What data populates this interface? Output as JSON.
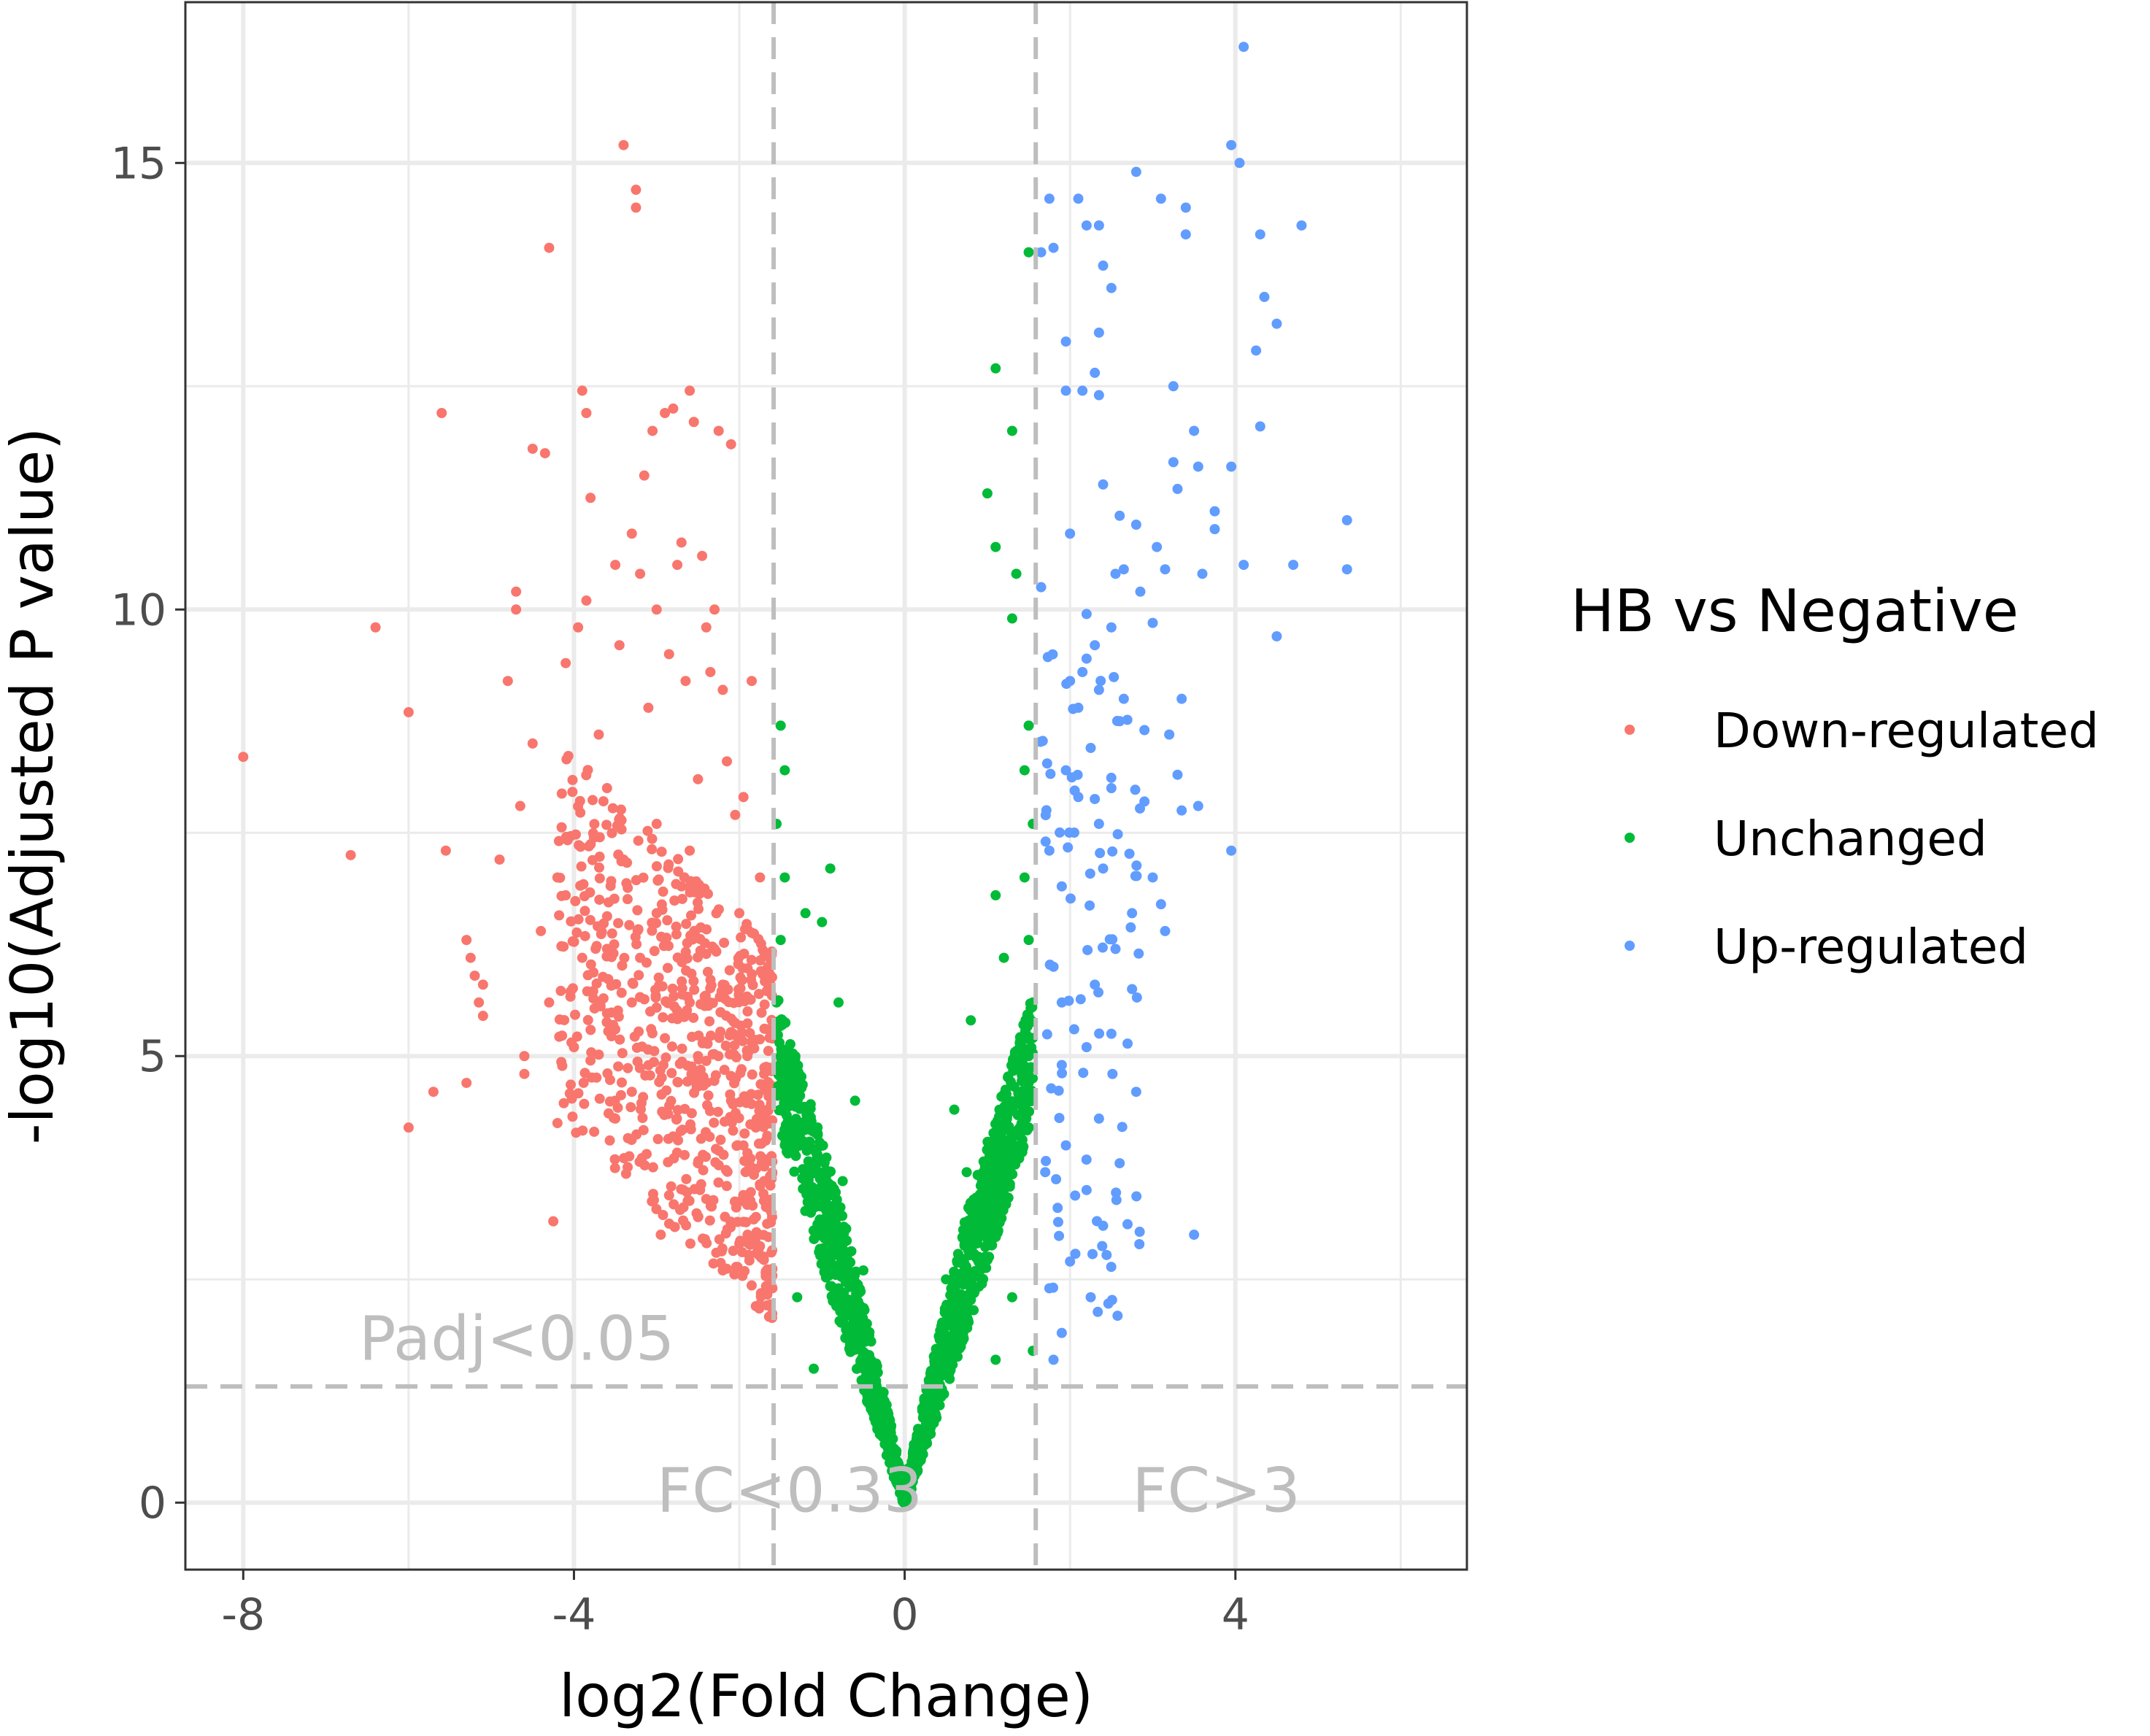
{
  "chart_data": {
    "type": "scatter",
    "title": "",
    "xlabel": "log2(Fold Change)",
    "ylabel": "-log10(Adjusted P value)",
    "xlim": [
      -8.7,
      6.8
    ],
    "ylim": [
      -0.75,
      16.8
    ],
    "x_ticks": [
      -8,
      -4,
      0,
      4
    ],
    "y_ticks": [
      0,
      5,
      10,
      15
    ],
    "grid": true,
    "legend": {
      "title": "HB vs Negative",
      "position": "right",
      "entries": [
        {
          "label": "Down-regulated",
          "color": "#f8766d"
        },
        {
          "label": "Unchanged",
          "color": "#00ba38"
        },
        {
          "label": "Up-regulated",
          "color": "#619cff"
        }
      ]
    },
    "thresholds": {
      "x": [
        -1.585,
        1.585
      ],
      "y": 1.301,
      "line_color": "#bebebe",
      "line_style": "dashed"
    },
    "annotations": [
      {
        "text": "Padj<0.05",
        "x": -6.6,
        "y": 1.6
      },
      {
        "text": "FC<0.33",
        "x": -3.0,
        "y": -0.1
      },
      {
        "text": "FC>3",
        "x": 2.75,
        "y": -0.1
      }
    ],
    "series": [
      {
        "name": "Down-regulated",
        "color": "#f8766d",
        "points": [
          [
            -8.0,
            8.35
          ],
          [
            -6.7,
            7.25
          ],
          [
            -6.4,
            9.8
          ],
          [
            -6.0,
            8.85
          ],
          [
            -6.0,
            4.2
          ],
          [
            -5.7,
            4.6
          ],
          [
            -5.6,
            12.2
          ],
          [
            -5.55,
            7.3
          ],
          [
            -5.3,
            4.7
          ],
          [
            -5.3,
            6.3
          ],
          [
            -5.25,
            6.1
          ],
          [
            -5.2,
            5.9
          ],
          [
            -5.15,
            5.6
          ],
          [
            -5.1,
            5.8
          ],
          [
            -5.1,
            5.45
          ],
          [
            -4.9,
            7.2
          ],
          [
            -4.8,
            9.2
          ],
          [
            -4.7,
            10.2
          ],
          [
            -4.7,
            10.0
          ],
          [
            -4.65,
            7.8
          ],
          [
            -4.6,
            4.8
          ],
          [
            -4.6,
            5.0
          ],
          [
            -4.5,
            8.5
          ],
          [
            -4.5,
            11.8
          ],
          [
            -4.4,
            6.4
          ],
          [
            -4.35,
            11.75
          ],
          [
            -4.3,
            14.05
          ],
          [
            -4.3,
            5.6
          ],
          [
            -4.25,
            3.15
          ],
          [
            -4.2,
            4.25
          ],
          [
            -4.2,
            7.0
          ],
          [
            -4.1,
            9.4
          ],
          [
            -4.1,
            6.8
          ],
          [
            -4.0,
            5.1
          ],
          [
            -3.95,
            9.8
          ],
          [
            -3.9,
            12.45
          ],
          [
            -3.85,
            10.1
          ],
          [
            -3.85,
            12.2
          ],
          [
            -3.8,
            11.25
          ],
          [
            -3.8,
            4.95
          ],
          [
            -3.75,
            7.45
          ],
          [
            -3.7,
            8.6
          ],
          [
            -3.6,
            6.2
          ],
          [
            -3.5,
            10.5
          ],
          [
            -3.5,
            4.3
          ],
          [
            -3.45,
            9.6
          ],
          [
            -3.4,
            15.2
          ],
          [
            -3.4,
            7.2
          ],
          [
            -3.3,
            10.85
          ],
          [
            -3.3,
            5.6
          ],
          [
            -3.25,
            14.5
          ],
          [
            -3.25,
            14.7
          ],
          [
            -3.2,
            10.4
          ],
          [
            -3.15,
            11.5
          ],
          [
            -3.1,
            8.9
          ],
          [
            -3.05,
            12.0
          ],
          [
            -3.0,
            6.6
          ],
          [
            -3.0,
            10.0
          ],
          [
            -2.95,
            3.0
          ],
          [
            -2.9,
            12.2
          ],
          [
            -2.85,
            9.5
          ],
          [
            -2.8,
            12.25
          ],
          [
            -2.75,
            10.5
          ],
          [
            -2.7,
            10.75
          ],
          [
            -2.65,
            9.2
          ],
          [
            -2.6,
            12.45
          ],
          [
            -2.55,
            12.1
          ],
          [
            -2.5,
            8.1
          ],
          [
            -2.5,
            3.8
          ],
          [
            -2.45,
            10.6
          ],
          [
            -2.4,
            9.8
          ],
          [
            -2.35,
            9.3
          ],
          [
            -2.3,
            10.0
          ],
          [
            -2.25,
            12.0
          ],
          [
            -2.2,
            9.1
          ],
          [
            -2.2,
            2.6
          ],
          [
            -2.15,
            8.3
          ],
          [
            -2.1,
            11.85
          ],
          [
            -2.05,
            7.7
          ],
          [
            -2.0,
            6.6
          ],
          [
            -1.95,
            7.9
          ],
          [
            -1.9,
            5.5
          ],
          [
            -1.85,
            9.2
          ],
          [
            -1.8,
            4.2
          ],
          [
            -1.75,
            7.0
          ],
          [
            -1.7,
            3.6
          ],
          [
            -1.65,
            5.3
          ],
          [
            -1.6,
            2.4
          ],
          [
            -3.6,
            8.0
          ],
          [
            -3.0,
            7.6
          ],
          [
            -2.7,
            6.9
          ],
          [
            -2.9,
            5.2
          ],
          [
            -2.6,
            5.6
          ],
          [
            -2.3,
            6.2
          ],
          [
            -2.1,
            4.5
          ],
          [
            -1.9,
            3.0
          ],
          [
            -1.7,
            4.8
          ],
          [
            -3.3,
            4.6
          ],
          [
            -2.8,
            4.1
          ],
          [
            -2.4,
            3.4
          ],
          [
            -2.0,
            2.9
          ],
          [
            -1.8,
            2.2
          ],
          [
            -3.9,
            6.1
          ],
          [
            -3.2,
            6.1
          ],
          [
            -2.5,
            5.0
          ],
          [
            -1.95,
            4.0
          ],
          [
            -1.65,
            3.3
          ],
          [
            -2.2,
            5.8
          ],
          [
            -2.6,
            7.3
          ],
          [
            -3.5,
            5.3
          ]
        ]
      },
      {
        "name": "Unchanged",
        "color": "#00ba38",
        "points": [
          [
            0.0,
            0.0
          ],
          [
            -0.1,
            0.3
          ],
          [
            0.1,
            0.3
          ],
          [
            -0.2,
            0.6
          ],
          [
            0.2,
            0.6
          ],
          [
            -0.3,
            0.9
          ],
          [
            0.3,
            0.9
          ],
          [
            -0.4,
            1.2
          ],
          [
            0.4,
            1.2
          ],
          [
            -0.5,
            1.5
          ],
          [
            0.5,
            1.5
          ],
          [
            -0.6,
            1.8
          ],
          [
            0.6,
            1.8
          ],
          [
            -0.7,
            2.1
          ],
          [
            0.7,
            2.1
          ],
          [
            -0.8,
            2.4
          ],
          [
            0.8,
            2.4
          ],
          [
            -0.9,
            2.7
          ],
          [
            0.9,
            2.7
          ],
          [
            -1.0,
            3.0
          ],
          [
            1.0,
            3.0
          ],
          [
            -1.1,
            3.3
          ],
          [
            1.1,
            3.3
          ],
          [
            -1.2,
            3.7
          ],
          [
            1.2,
            3.7
          ],
          [
            -1.3,
            4.1
          ],
          [
            1.3,
            4.1
          ],
          [
            -1.4,
            4.5
          ],
          [
            1.4,
            4.5
          ],
          [
            -1.5,
            5.0
          ],
          [
            1.5,
            5.0
          ],
          [
            -1.55,
            5.6
          ],
          [
            1.55,
            5.6
          ],
          [
            -1.5,
            6.3
          ],
          [
            1.5,
            6.3
          ],
          [
            -1.45,
            7.0
          ],
          [
            1.45,
            7.0
          ],
          [
            -1.55,
            7.6
          ],
          [
            1.55,
            7.6
          ],
          [
            -1.45,
            8.2
          ],
          [
            1.45,
            8.2
          ],
          [
            -1.5,
            8.7
          ],
          [
            1.5,
            8.7
          ],
          [
            -0.8,
            5.6
          ],
          [
            0.8,
            5.4
          ],
          [
            -1.0,
            6.5
          ],
          [
            1.1,
            6.8
          ],
          [
            -0.6,
            4.5
          ],
          [
            0.6,
            4.4
          ],
          [
            -0.9,
            7.1
          ],
          [
            1.3,
            9.9
          ],
          [
            1.0,
            11.3
          ],
          [
            1.3,
            12.0
          ],
          [
            1.1,
            12.7
          ],
          [
            1.5,
            14.0
          ],
          [
            1.35,
            10.4
          ],
          [
            1.1,
            10.7
          ],
          [
            -0.35,
            1.0
          ],
          [
            0.35,
            1.0
          ],
          [
            -1.3,
            2.3
          ],
          [
            1.3,
            2.3
          ],
          [
            -1.1,
            1.5
          ],
          [
            1.1,
            1.6
          ],
          [
            -0.75,
            3.6
          ],
          [
            0.75,
            3.7
          ],
          [
            1.55,
            1.7
          ],
          [
            -1.2,
            6.6
          ],
          [
            1.2,
            6.1
          ],
          [
            -0.5,
            2.6
          ],
          [
            0.5,
            2.5
          ]
        ]
      },
      {
        "name": "Up-regulated",
        "color": "#619cff",
        "points": [
          [
            4.1,
            16.3
          ],
          [
            3.95,
            15.2
          ],
          [
            4.05,
            15.0
          ],
          [
            2.8,
            14.9
          ],
          [
            1.75,
            14.6
          ],
          [
            2.1,
            14.6
          ],
          [
            3.1,
            14.6
          ],
          [
            3.4,
            14.5
          ],
          [
            2.35,
            14.3
          ],
          [
            2.2,
            14.3
          ],
          [
            4.8,
            14.3
          ],
          [
            4.3,
            14.2
          ],
          [
            3.4,
            14.2
          ],
          [
            1.65,
            14.0
          ],
          [
            1.8,
            14.05
          ],
          [
            2.4,
            13.85
          ],
          [
            2.5,
            13.6
          ],
          [
            4.35,
            13.5
          ],
          [
            4.5,
            13.2
          ],
          [
            2.35,
            13.1
          ],
          [
            1.95,
            13.0
          ],
          [
            4.25,
            12.9
          ],
          [
            2.3,
            12.65
          ],
          [
            1.95,
            12.45
          ],
          [
            2.15,
            12.45
          ],
          [
            3.25,
            12.5
          ],
          [
            2.35,
            12.4
          ],
          [
            3.5,
            12.0
          ],
          [
            4.3,
            12.05
          ],
          [
            3.55,
            11.6
          ],
          [
            3.25,
            11.65
          ],
          [
            3.95,
            11.6
          ],
          [
            3.3,
            11.35
          ],
          [
            2.4,
            11.4
          ],
          [
            2.6,
            11.05
          ],
          [
            3.75,
            11.1
          ],
          [
            2.8,
            10.95
          ],
          [
            5.35,
            11.0
          ],
          [
            2.0,
            10.85
          ],
          [
            3.05,
            10.7
          ],
          [
            3.75,
            10.9
          ],
          [
            3.15,
            10.45
          ],
          [
            4.1,
            10.5
          ],
          [
            4.7,
            10.5
          ],
          [
            5.35,
            10.45
          ],
          [
            1.65,
            10.25
          ],
          [
            2.65,
            10.45
          ],
          [
            2.55,
            10.4
          ],
          [
            3.6,
            10.4
          ],
          [
            2.85,
            10.2
          ],
          [
            2.2,
            9.95
          ],
          [
            3.0,
            9.85
          ],
          [
            2.5,
            9.8
          ],
          [
            4.5,
            9.7
          ],
          [
            2.3,
            9.6
          ],
          [
            2.2,
            9.45
          ],
          [
            2.15,
            9.3
          ],
          [
            2.0,
            9.2
          ],
          [
            2.35,
            9.1
          ],
          [
            2.65,
            9.0
          ],
          [
            3.35,
            9.0
          ],
          [
            2.1,
            8.9
          ],
          [
            2.6,
            8.75
          ],
          [
            2.9,
            8.65
          ],
          [
            3.2,
            8.6
          ],
          [
            2.25,
            8.45
          ],
          [
            1.95,
            8.2
          ],
          [
            3.3,
            8.15
          ],
          [
            2.5,
            8.0
          ],
          [
            2.1,
            7.9
          ],
          [
            2.9,
            7.85
          ],
          [
            3.55,
            7.8
          ],
          [
            3.35,
            7.75
          ],
          [
            2.35,
            7.6
          ],
          [
            1.75,
            7.3
          ],
          [
            3.95,
            7.3
          ],
          [
            2.4,
            7.1
          ],
          [
            3.0,
            7.0
          ],
          [
            1.9,
            6.9
          ],
          [
            3.1,
            6.7
          ],
          [
            2.75,
            6.6
          ],
          [
            3.15,
            6.4
          ],
          [
            2.55,
            6.2
          ],
          [
            1.8,
            6.0
          ],
          [
            2.3,
            5.8
          ],
          [
            2.75,
            5.75
          ],
          [
            1.9,
            5.6
          ],
          [
            2.05,
            5.3
          ],
          [
            2.5,
            5.25
          ],
          [
            2.2,
            5.1
          ],
          [
            1.9,
            4.9
          ],
          [
            2.8,
            4.6
          ],
          [
            2.35,
            4.3
          ],
          [
            1.95,
            4.0
          ],
          [
            2.6,
            3.8
          ],
          [
            1.7,
            3.7
          ],
          [
            2.2,
            3.5
          ],
          [
            1.85,
            3.3
          ],
          [
            2.4,
            3.1
          ],
          [
            3.5,
            3.0
          ],
          [
            2.0,
            2.7
          ],
          [
            1.75,
            2.4
          ],
          [
            2.25,
            2.3
          ],
          [
            1.9,
            1.9
          ],
          [
            1.8,
            1.6
          ]
        ]
      }
    ]
  }
}
